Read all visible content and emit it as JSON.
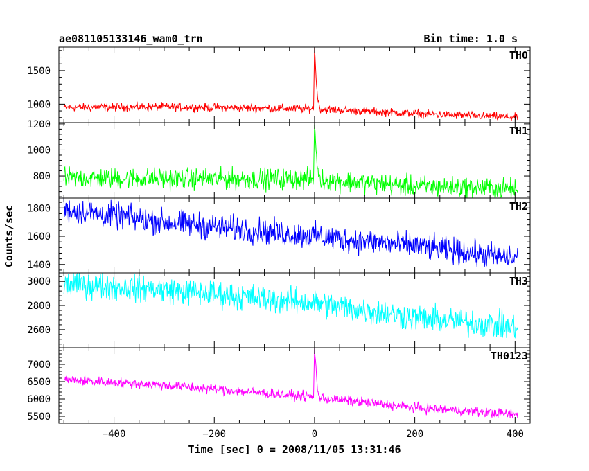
{
  "chart_data": {
    "type": "line",
    "title_left": "ae081105133146_wam0_trn",
    "title_right": "Bin time: 1.0 s",
    "xlabel": "Time [sec] 0 = 2008/11/05 13:31:46",
    "ylabel": "Counts/sec",
    "xlim": [
      -510,
      430
    ],
    "x_ticks": [
      -400,
      -200,
      0,
      200,
      400
    ],
    "x_range": [
      -500,
      405
    ],
    "panels": [
      {
        "name": "TH0",
        "color": "#ff0000",
        "ylim": [
          725,
          1850
        ],
        "y_ticks": [
          1000,
          1500
        ],
        "trend": [
          [
            -500,
            950
          ],
          [
            -300,
            960
          ],
          [
            0,
            930
          ],
          [
            200,
            860
          ],
          [
            405,
            800
          ]
        ],
        "noise": 30,
        "burst": [
          [
            -2,
            930
          ],
          [
            0,
            1850
          ],
          [
            3,
            1400
          ],
          [
            6,
            1100
          ],
          [
            10,
            960
          ]
        ]
      },
      {
        "name": "TH1",
        "color": "#00ff00",
        "ylim": [
          630,
          1210
        ],
        "y_ticks": [
          800,
          1000,
          1200
        ],
        "trend": [
          [
            -500,
            785
          ],
          [
            -300,
            780
          ],
          [
            0,
            775
          ],
          [
            200,
            720
          ],
          [
            405,
            700
          ]
        ],
        "noise": 40,
        "burst": [
          [
            -2,
            775
          ],
          [
            0,
            1205
          ],
          [
            3,
            1010
          ],
          [
            6,
            850
          ],
          [
            10,
            785
          ]
        ]
      },
      {
        "name": "TH2",
        "color": "#0000ff",
        "ylim": [
          1340,
          1870
        ],
        "y_ticks": [
          1400,
          1600,
          1800
        ],
        "trend": [
          [
            -500,
            1790
          ],
          [
            -300,
            1700
          ],
          [
            0,
            1600
          ],
          [
            200,
            1530
          ],
          [
            405,
            1440
          ]
        ],
        "noise": 45,
        "burst": []
      },
      {
        "name": "TH3",
        "color": "#00ffff",
        "ylim": [
          2450,
          3070
        ],
        "y_ticks": [
          2600,
          2800,
          3000
        ],
        "trend": [
          [
            -500,
            2980
          ],
          [
            -300,
            2930
          ],
          [
            0,
            2820
          ],
          [
            200,
            2700
          ],
          [
            405,
            2620
          ]
        ],
        "noise": 55,
        "burst": []
      },
      {
        "name": "TH0123",
        "color": "#ff00ff",
        "ylim": [
          5300,
          7480
        ],
        "y_ticks": [
          5500,
          6000,
          6500,
          7000
        ],
        "trend": [
          [
            -500,
            6550
          ],
          [
            -300,
            6400
          ],
          [
            0,
            6050
          ],
          [
            200,
            5750
          ],
          [
            405,
            5550
          ]
        ],
        "noise": 70,
        "burst": [
          [
            -2,
            6050
          ],
          [
            0,
            7450
          ],
          [
            3,
            6900
          ],
          [
            6,
            6250
          ],
          [
            10,
            6050
          ]
        ]
      }
    ]
  }
}
